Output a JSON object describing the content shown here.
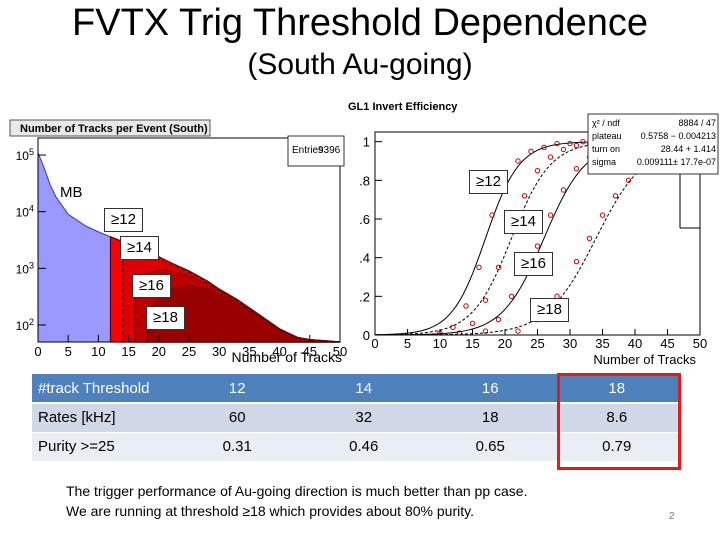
{
  "title": "FVTX Trig Threshold Dependence",
  "subtitle": "(South Au-going)",
  "chart_data": [
    {
      "type": "area",
      "title": "Number of Tracks per Event (South)",
      "xlabel": "Number of Tracks",
      "ylabel": "",
      "xlim": [
        0,
        50
      ],
      "ylim": [
        50,
        200000
      ],
      "yscale": "log",
      "x_ticks": [
        "0",
        "5",
        "10",
        "15",
        "20",
        "25",
        "30",
        "35",
        "40",
        "45",
        "50"
      ],
      "y_ticks": [
        "10^2",
        "10^3",
        "10^4",
        "10^5"
      ],
      "stats": {
        "label": "Entries",
        "value": "9396"
      },
      "series": [
        {
          "name": "MB",
          "color": "#9999ff",
          "x": [
            0,
            1,
            2,
            3,
            5,
            8,
            10,
            12,
            15,
            18,
            20,
            22,
            25,
            28,
            30,
            33,
            35,
            38,
            40,
            43,
            45,
            48,
            50
          ],
          "values": [
            110000,
            60000,
            30000,
            18000,
            9000,
            5500,
            4400,
            3600,
            2700,
            2000,
            1600,
            1250,
            900,
            600,
            430,
            280,
            200,
            120,
            85,
            60,
            55,
            52,
            50
          ]
        },
        {
          "name": "≥12",
          "color": "#ff0000",
          "x": [
            12,
            15,
            18,
            20,
            22,
            25,
            28,
            30,
            33,
            35,
            38,
            40,
            43,
            45,
            48,
            50
          ],
          "values": [
            3600,
            2700,
            2000,
            1600,
            1250,
            900,
            600,
            430,
            280,
            200,
            120,
            85,
            60,
            55,
            52,
            50
          ]
        },
        {
          "name": "≥14",
          "color": "#dd0000",
          "x": [
            14,
            15,
            18,
            20,
            22,
            25,
            28,
            30,
            33,
            35,
            38,
            40,
            43,
            45,
            48,
            50
          ],
          "values": [
            1500,
            1800,
            1700,
            1450,
            1150,
            850,
            580,
            420,
            275,
            198,
            120,
            85,
            60,
            55,
            52,
            50
          ]
        },
        {
          "name": "≥16",
          "color": "#bb0000",
          "x": [
            16,
            18,
            20,
            22,
            25,
            28,
            30,
            33,
            35,
            38,
            40,
            43,
            45,
            48,
            50
          ],
          "values": [
            500,
            800,
            950,
            900,
            750,
            540,
            400,
            265,
            193,
            118,
            84,
            60,
            55,
            52,
            50
          ]
        },
        {
          "name": "≥18",
          "color": "#990000",
          "x": [
            18,
            20,
            22,
            25,
            28,
            30,
            33,
            35,
            38,
            40,
            43,
            45,
            48,
            50
          ],
          "values": [
            160,
            300,
            420,
            500,
            440,
            350,
            245,
            185,
            115,
            82,
            60,
            55,
            52,
            50
          ]
        }
      ]
    },
    {
      "type": "scatter",
      "title": "GL1 Invert Efficiency",
      "xlabel": "Number of Tracks",
      "ylabel": "",
      "xlim": [
        0,
        50
      ],
      "ylim": [
        0,
        1.05
      ],
      "x_ticks": [
        "0",
        "5",
        "10",
        "15",
        "20",
        "25",
        "30",
        "35",
        "40",
        "45",
        "50"
      ],
      "y_ticks": [
        "0",
        ".2",
        ".4",
        ".6",
        ".8",
        "1"
      ],
      "fit_stats": [
        {
          "label": "χ² / ndf",
          "value": "8884 / 47"
        },
        {
          "label": "plateau",
          "value": "0.5758 − 0.004213"
        },
        {
          "label": "turn on",
          "value": "28.44 + 1.414"
        },
        {
          "label": "sigma",
          "value": "0.009111± 17.7e-07"
        }
      ],
      "series": [
        {
          "name": "≥12",
          "turn_on": 17,
          "width": 2.6,
          "x": [
            10,
            12,
            14,
            16,
            18,
            20,
            22,
            24,
            26,
            28,
            30,
            32,
            34,
            36,
            38
          ],
          "values": [
            0.01,
            0.04,
            0.15,
            0.35,
            0.62,
            0.8,
            0.9,
            0.95,
            0.97,
            0.99,
            0.99,
            1.0,
            1.0,
            0.99,
            1.0
          ]
        },
        {
          "name": "≥14",
          "turn_on": 21,
          "width": 3.0,
          "x": [
            13,
            15,
            17,
            19,
            21,
            23,
            25,
            27,
            29,
            31,
            33,
            35,
            37
          ],
          "values": [
            0.01,
            0.06,
            0.18,
            0.35,
            0.55,
            0.72,
            0.85,
            0.92,
            0.96,
            0.98,
            0.99,
            1.0,
            1.0
          ]
        },
        {
          "name": "≥16",
          "turn_on": 26,
          "width": 3.2,
          "x": [
            17,
            19,
            21,
            23,
            25,
            27,
            29,
            31,
            33,
            35,
            37,
            39,
            41
          ],
          "values": [
            0.02,
            0.08,
            0.2,
            0.33,
            0.46,
            0.62,
            0.75,
            0.86,
            0.92,
            0.95,
            0.98,
            0.99,
            1.0
          ]
        },
        {
          "name": "≥18",
          "turn_on": 34,
          "width": 3.8,
          "x": [
            22,
            25,
            28,
            31,
            33,
            35,
            37,
            39,
            41,
            43,
            45
          ],
          "values": [
            0.02,
            0.08,
            0.2,
            0.38,
            0.5,
            0.62,
            0.72,
            0.8,
            0.87,
            0.92,
            0.96
          ]
        }
      ]
    }
  ],
  "left_tags": {
    "mb": "MB",
    "t12": "≥12",
    "t14": "≥14",
    "t16": "≥16",
    "t18": "≥18"
  },
  "right_tags": {
    "t12": "≥12",
    "t14": "≥14",
    "t16": "≥16",
    "t18": "≥18"
  },
  "table": {
    "header": [
      "#track Threshold",
      "12",
      "14",
      "16",
      "18"
    ],
    "rows": [
      [
        "Rates [kHz]",
        "60",
        "32",
        "18",
        "8.6"
      ],
      [
        "Purity >=25",
        "0.31",
        "0.46",
        "0.65",
        "0.79"
      ]
    ]
  },
  "highlight_color": "#e31b1b",
  "note_lines": [
    "The trigger performance of Au-going direction is much better than pp case.",
    "We are running at threshold ≥18 which provides about 80% purity."
  ],
  "page_number": "2"
}
